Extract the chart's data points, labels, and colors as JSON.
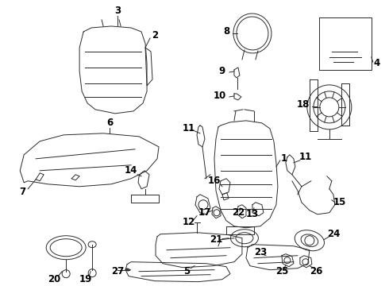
{
  "bg_color": "#ffffff",
  "line_color": "#2a2a2a",
  "label_color": "#000000",
  "label_fontsize": 8.5,
  "label_fontweight": "bold",
  "figsize": [
    4.9,
    3.6
  ],
  "dpi": 100
}
